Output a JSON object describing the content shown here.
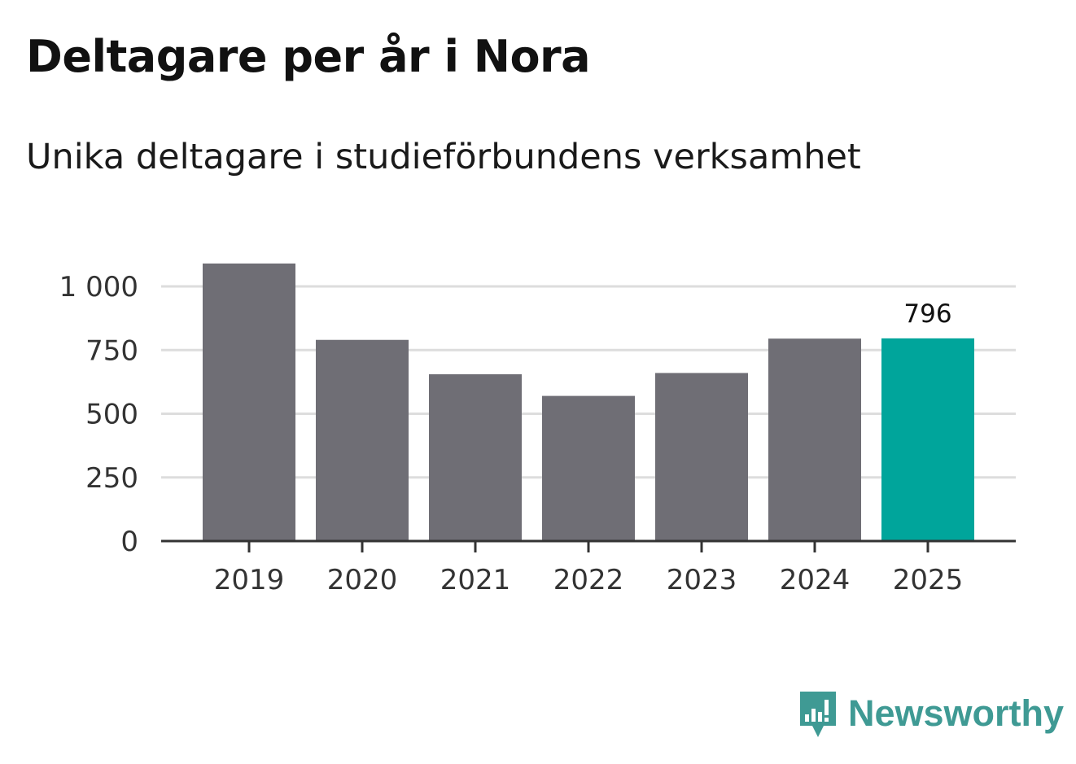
{
  "header": {
    "title": "Deltagare per år i Nora",
    "subtitle": "Unika deltagare i studieförbundens verksamhet"
  },
  "brand": {
    "name": "Newsworthy",
    "color": "#3f9a94",
    "icon": "newsworthy-logo-icon"
  },
  "colors": {
    "bar": "#6f6e75",
    "highlight": "#00a59b",
    "grid": "#dddddd",
    "axis": "#333333"
  },
  "chart_data": {
    "type": "bar",
    "categories": [
      "2019",
      "2020",
      "2021",
      "2022",
      "2023",
      "2024",
      "2025"
    ],
    "values": [
      1090,
      790,
      655,
      570,
      660,
      795,
      796
    ],
    "highlight_index": 6,
    "data_labels": [
      {
        "index": 6,
        "text": "796"
      }
    ],
    "ylim": [
      0,
      1000
    ],
    "yticks": [
      0,
      250,
      500,
      750,
      1000
    ],
    "ytick_labels": [
      "0",
      "250",
      "500",
      "750",
      "1 000"
    ],
    "grid": true,
    "legend": "none",
    "xlabel": "",
    "ylabel": ""
  }
}
